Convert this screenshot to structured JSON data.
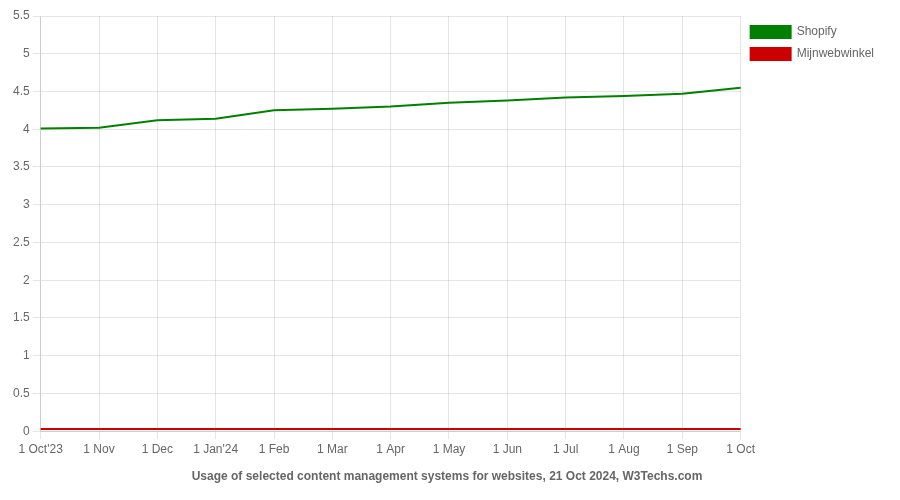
{
  "chart_data": {
    "type": "line",
    "title": "Usage of selected content management systems for websites, 21 Oct 2024, W3Techs.com",
    "categories": [
      "1 Oct'23",
      "1 Nov",
      "1 Dec",
      "1 Jan'24",
      "1 Feb",
      "1 Mar",
      "1 Apr",
      "1 May",
      "1 Jun",
      "1 Jul",
      "1 Aug",
      "1 Sep",
      "1 Oct"
    ],
    "series": [
      {
        "name": "Shopify",
        "color": "#008000",
        "values": [
          4.01,
          4.02,
          4.12,
          4.14,
          4.25,
          4.27,
          4.3,
          4.35,
          4.38,
          4.42,
          4.44,
          4.47,
          4.55
        ]
      },
      {
        "name": "Mijnwebwinkel",
        "color": "#cc0000",
        "values": [
          0.03,
          0.03,
          0.03,
          0.03,
          0.03,
          0.03,
          0.03,
          0.03,
          0.03,
          0.03,
          0.03,
          0.03,
          0.03
        ]
      }
    ],
    "ylim": [
      0,
      5.5
    ],
    "yticks": [
      0,
      0.5,
      1.0,
      1.5,
      2.0,
      2.5,
      3.0,
      3.5,
      4.0,
      4.5,
      5.0,
      5.5
    ],
    "grid": true,
    "legend": "right"
  }
}
